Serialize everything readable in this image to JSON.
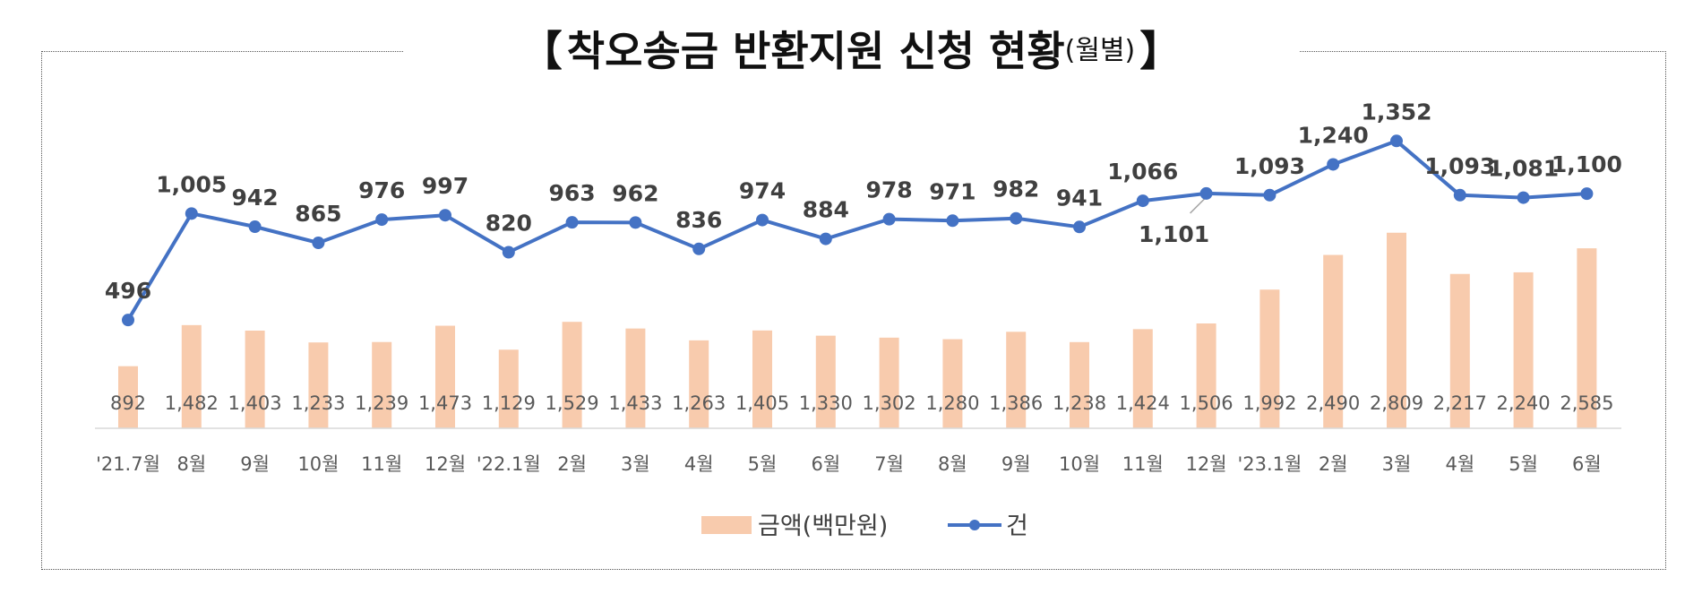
{
  "title": {
    "open_bracket": "【",
    "main": "착오송금 반환지원 신청 현황",
    "sub": "(월별)",
    "close_bracket": "】"
  },
  "chart_data": {
    "type": "bar",
    "categories": [
      "'21.7월",
      "8월",
      "9월",
      "10월",
      "11월",
      "12월",
      "'22.1월",
      "2월",
      "3월",
      "4월",
      "5월",
      "6월",
      "7월",
      "8월",
      "9월",
      "10월",
      "11월",
      "12월",
      "'23.1월",
      "2월",
      "3월",
      "4월",
      "5월",
      "6월"
    ],
    "series": [
      {
        "name": "금액(백만원)",
        "type": "bar",
        "color": "#F8CBAD",
        "values": [
          892,
          1482,
          1403,
          1233,
          1239,
          1473,
          1129,
          1529,
          1433,
          1263,
          1405,
          1330,
          1302,
          1280,
          1386,
          1238,
          1424,
          1506,
          1992,
          2490,
          2809,
          2217,
          2240,
          2585
        ],
        "labels": [
          "892",
          "1,482",
          "1,403",
          "1,233",
          "1,239",
          "1,473",
          "1,129",
          "1,529",
          "1,433",
          "1,263",
          "1,405",
          "1,330",
          "1,302",
          "1,280",
          "1,386",
          "1,238",
          "1,424",
          "1,506",
          "1,992",
          "2,490",
          "2,809",
          "2,217",
          "2,240",
          "2,585"
        ]
      },
      {
        "name": "건",
        "type": "line",
        "color": "#4472C4",
        "values": [
          496,
          1005,
          942,
          865,
          976,
          997,
          820,
          963,
          962,
          836,
          974,
          884,
          978,
          971,
          982,
          941,
          1066,
          1101,
          1093,
          1240,
          1352,
          1093,
          1081,
          1100
        ],
        "labels": [
          "496",
          "1,005",
          "942",
          "865",
          "976",
          "997",
          "820",
          "963",
          "962",
          "836",
          "974",
          "884",
          "978",
          "971",
          "982",
          "941",
          "1,066",
          "1,101",
          "1,093",
          "1,240",
          "1,352",
          "1,093",
          "1,081",
          "1,100"
        ]
      }
    ],
    "legend": {
      "position": "bottom"
    },
    "grid": false
  }
}
